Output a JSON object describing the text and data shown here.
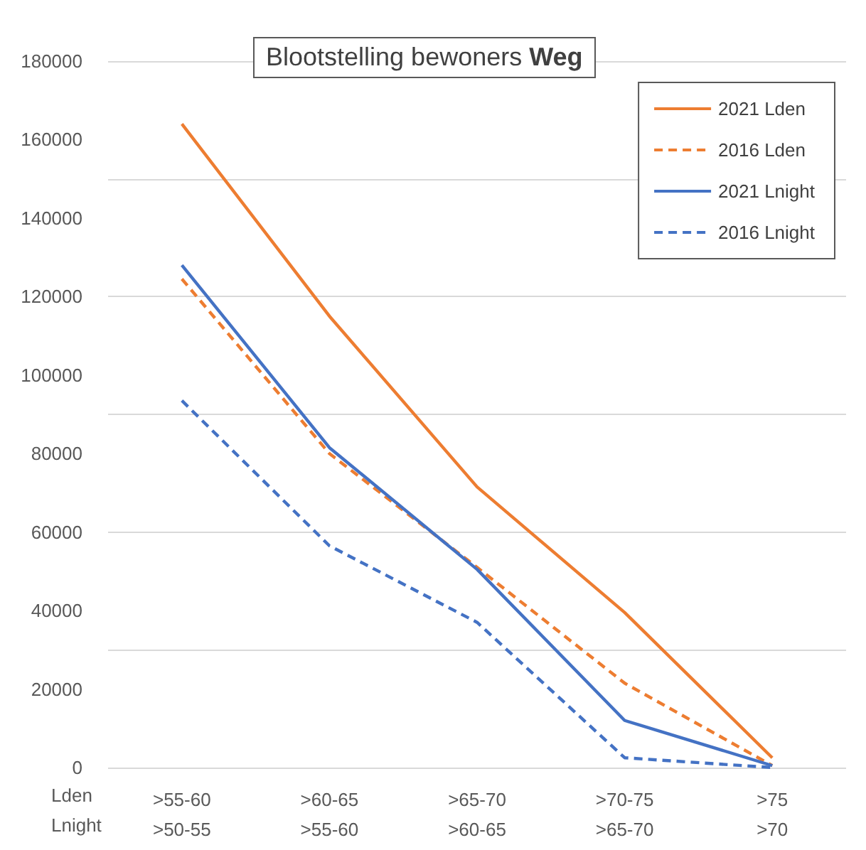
{
  "chart_data": {
    "type": "line",
    "title": "Blootstelling bewoners Weg",
    "categories": [
      ">55-60\n>50-55",
      ">60-65\n>55-60",
      ">65-70\n>60-65",
      ">70-75\n>65-70",
      ">75\n>70"
    ],
    "series": [
      {
        "name": "2021 Lden",
        "color": "#ed7d31",
        "line_style": "solid",
        "values": [
          164000,
          115000,
          71500,
          39500,
          2500
        ]
      },
      {
        "name": "2016 Lden",
        "color": "#ed7d31",
        "line_style": "dashed",
        "values": [
          124500,
          80000,
          51000,
          21500,
          500
        ]
      },
      {
        "name": "2021 Lnight",
        "color": "#4472c4",
        "line_style": "solid",
        "values": [
          128000,
          81500,
          50500,
          12000,
          500
        ]
      },
      {
        "name": "2016 Lnight",
        "color": "#4472c4",
        "line_style": "dashed",
        "values": [
          93500,
          56500,
          37000,
          2500,
          0
        ]
      }
    ],
    "annotations": [
      "Lden",
      "Lnight"
    ],
    "ylim": [
      0,
      180000
    ],
    "yticks": [
      0,
      20000,
      40000,
      60000,
      80000,
      100000,
      120000,
      140000,
      160000,
      180000
    ],
    "grid": "y",
    "legend": "top right",
    "marker": "none"
  }
}
